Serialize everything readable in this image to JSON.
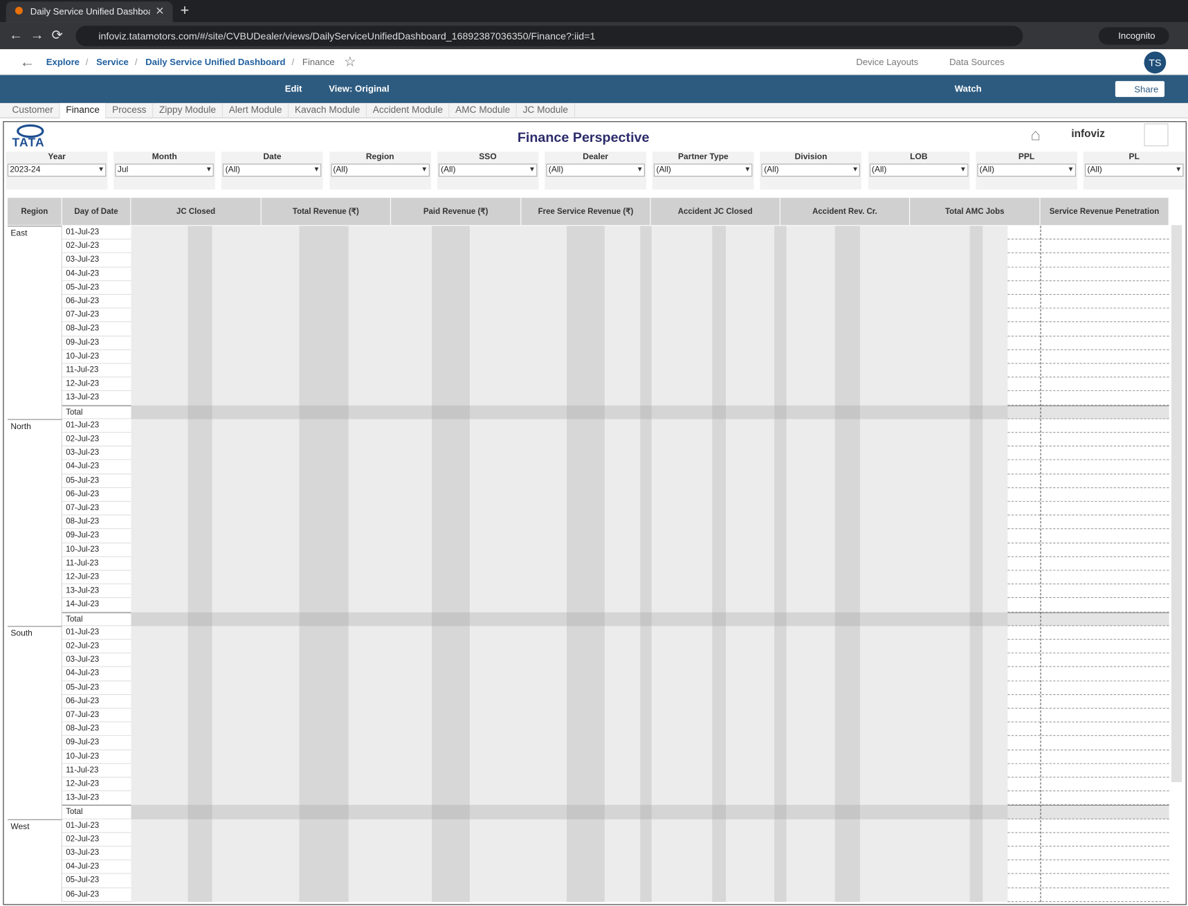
{
  "browser": {
    "tab_title": "Daily Service Unified Dashboard",
    "url": "infoviz.tatamotors.com/#/site/CVBUDealer/views/DailyServiceUnifiedDashboard_16892387036350/Finance?:iid=1",
    "profile": "Incognito"
  },
  "breadcrumbs": [
    "Explore",
    "Service",
    "Daily Service Unified Dashboard",
    "Finance"
  ],
  "header_actions": [
    "Device Layouts",
    "Data Sources"
  ],
  "avatar": "TS",
  "toolbar": {
    "edit": "Edit",
    "view": "View: Original",
    "watch": "Watch",
    "share": "Share"
  },
  "tabs": [
    "Customer",
    "Finance",
    "Process",
    "Zippy Module",
    "Alert Module",
    "Kavach Module",
    "Accident Module",
    "AMC Module",
    "JC Module"
  ],
  "dashboard": {
    "logo": "TATA",
    "brand": "infoviz",
    "title": "Finance Perspective",
    "filters": [
      {
        "label": "Year",
        "value": "2023-24"
      },
      {
        "label": "Month",
        "value": "Jul"
      },
      {
        "label": "Date",
        "value": "(All)"
      },
      {
        "label": "Region",
        "value": "(All)"
      },
      {
        "label": "SSO",
        "value": "(All)"
      },
      {
        "label": "Dealer",
        "value": "(All)"
      },
      {
        "label": "Partner Type",
        "value": "(All)"
      },
      {
        "label": "Division",
        "value": "(All)"
      },
      {
        "label": "LOB",
        "value": "(All)"
      },
      {
        "label": "PPL",
        "value": "(All)"
      },
      {
        "label": "PL",
        "value": "(All)"
      }
    ],
    "table": {
      "columns": [
        "Region",
        "Day of Date",
        "JC Closed",
        "Total Revenue (₹)",
        "Paid Revenue (₹)",
        "Free Service Revenue (₹)",
        "Accident JC Closed",
        "Accident Rev. Cr.",
        "Total AMC Jobs",
        "Service Revenue Penetration"
      ],
      "groups": [
        {
          "region": "East",
          "days": [
            "01-Jul-23",
            "02-Jul-23",
            "03-Jul-23",
            "04-Jul-23",
            "05-Jul-23",
            "06-Jul-23",
            "07-Jul-23",
            "08-Jul-23",
            "09-Jul-23",
            "10-Jul-23",
            "11-Jul-23",
            "12-Jul-23",
            "13-Jul-23"
          ],
          "total": "Total"
        },
        {
          "region": "North",
          "days": [
            "01-Jul-23",
            "02-Jul-23",
            "03-Jul-23",
            "04-Jul-23",
            "05-Jul-23",
            "06-Jul-23",
            "07-Jul-23",
            "08-Jul-23",
            "09-Jul-23",
            "10-Jul-23",
            "11-Jul-23",
            "12-Jul-23",
            "13-Jul-23",
            "14-Jul-23"
          ],
          "total": "Total"
        },
        {
          "region": "South",
          "days": [
            "01-Jul-23",
            "02-Jul-23",
            "03-Jul-23",
            "04-Jul-23",
            "05-Jul-23",
            "06-Jul-23",
            "07-Jul-23",
            "08-Jul-23",
            "09-Jul-23",
            "10-Jul-23",
            "11-Jul-23",
            "12-Jul-23",
            "13-Jul-23"
          ],
          "total": "Total"
        },
        {
          "region": "West",
          "days": [
            "01-Jul-23",
            "02-Jul-23",
            "03-Jul-23",
            "04-Jul-23",
            "05-Jul-23",
            "06-Jul-23"
          ]
        }
      ]
    }
  }
}
